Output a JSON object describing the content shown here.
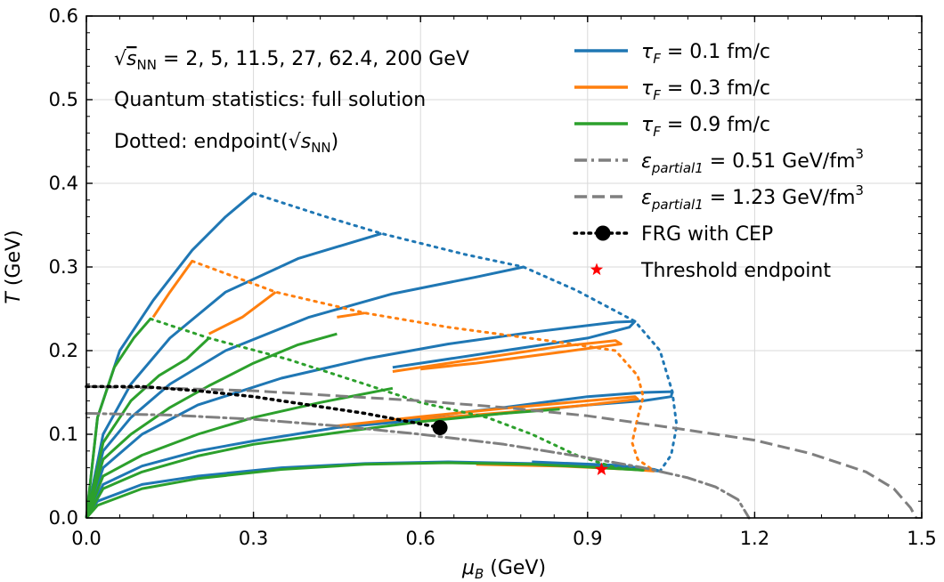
{
  "chart_data": {
    "type": "line",
    "xlabel_main": "μ",
    "xlabel_sub": "B",
    "xlabel_unit": " (GeV)",
    "ylabel_main": "T",
    "ylabel_unit": " (GeV)",
    "xlim": [
      0.0,
      1.5
    ],
    "ylim": [
      0.0,
      0.6
    ],
    "xticks": [
      "0.0",
      "0.3",
      "0.6",
      "0.9",
      "1.2",
      "1.5"
    ],
    "yticks": [
      "0.0",
      "0.1",
      "0.2",
      "0.3",
      "0.4",
      "0.5",
      "0.6"
    ],
    "xtick_values": [
      0.0,
      0.3,
      0.6,
      0.9,
      1.2,
      1.5
    ],
    "ytick_values": [
      0.0,
      0.1,
      0.2,
      0.3,
      0.4,
      0.5,
      0.6
    ],
    "grid": true,
    "legend_position": "top-right",
    "annotations": {
      "line1_prefix": "√",
      "line1_s": "s",
      "line1_sub": "NN",
      "line1_rest": " =  2, 5, 11.5, 27, 62.4, 200 GeV",
      "line2": "Quantum statistics: full solution",
      "line3_prefix": "Dotted: endpoint(√",
      "line3_s": "s",
      "line3_sub": "NN",
      "line3_suffix": ")"
    },
    "legend": [
      {
        "key": "tau01",
        "sym": "τ",
        "sub": "F",
        "text": " = 0.1 fm/c",
        "sup": "",
        "color": "#1f77b4",
        "style": "solid"
      },
      {
        "key": "tau03",
        "sym": "τ",
        "sub": "F",
        "text": " = 0.3 fm/c",
        "sup": "",
        "color": "#ff7f0e",
        "style": "solid"
      },
      {
        "key": "tau09",
        "sym": "τ",
        "sub": "F",
        "text": " = 0.9 fm/c",
        "sup": "",
        "color": "#2ca02c",
        "style": "solid"
      },
      {
        "key": "eps051",
        "sym": "ε",
        "sub": "partial1",
        "text": " = 0.51 GeV/fm",
        "sup": "3",
        "color": "#7f7f7f",
        "style": "dashdot"
      },
      {
        "key": "eps123",
        "sym": "ε",
        "sub": "partial1",
        "text": " = 1.23 GeV/fm",
        "sup": "3",
        "color": "#7f7f7f",
        "style": "dashed"
      },
      {
        "key": "frg",
        "sym": "",
        "sub": "",
        "text": "FRG with CEP",
        "sup": "",
        "color": "#000000",
        "style": "dotted-marker"
      },
      {
        "key": "thr",
        "sym": "",
        "sub": "",
        "text": "Threshold endpoint",
        "sup": "",
        "color": "#ff0000",
        "style": "star"
      }
    ],
    "series": [
      {
        "name": "τF = 0.1 fm/c",
        "color": "#1f77b4",
        "style": "solid",
        "width": 3,
        "paths": [
          [
            [
              0.0,
              0.0
            ],
            [
              0.02,
              0.12
            ],
            [
              0.06,
              0.2
            ],
            [
              0.12,
              0.26
            ],
            [
              0.19,
              0.32
            ],
            [
              0.25,
              0.36
            ],
            [
              0.3,
              0.388
            ]
          ],
          [
            [
              0.0,
              0.0
            ],
            [
              0.03,
              0.1
            ],
            [
              0.08,
              0.16
            ],
            [
              0.15,
              0.215
            ],
            [
              0.25,
              0.27
            ],
            [
              0.38,
              0.31
            ],
            [
              0.53,
              0.34
            ]
          ],
          [
            [
              0.0,
              0.0
            ],
            [
              0.03,
              0.08
            ],
            [
              0.08,
              0.12
            ],
            [
              0.15,
              0.16
            ],
            [
              0.25,
              0.2
            ],
            [
              0.4,
              0.24
            ],
            [
              0.55,
              0.268
            ],
            [
              0.7,
              0.288
            ],
            [
              0.785,
              0.3
            ]
          ],
          [
            [
              0.0,
              0.0
            ],
            [
              0.03,
              0.06
            ],
            [
              0.1,
              0.1
            ],
            [
              0.2,
              0.135
            ],
            [
              0.35,
              0.167
            ],
            [
              0.5,
              0.19
            ],
            [
              0.65,
              0.208
            ],
            [
              0.8,
              0.222
            ],
            [
              0.95,
              0.234
            ],
            [
              0.985,
              0.235
            ],
            [
              0.975,
              0.228
            ],
            [
              0.9,
              0.215
            ],
            [
              0.75,
              0.2
            ],
            [
              0.6,
              0.185
            ],
            [
              0.55,
              0.18
            ]
          ],
          [
            [
              0.0,
              0.0
            ],
            [
              0.03,
              0.04
            ],
            [
              0.1,
              0.062
            ],
            [
              0.2,
              0.08
            ],
            [
              0.3,
              0.092
            ],
            [
              0.45,
              0.108
            ],
            [
              0.6,
              0.12
            ],
            [
              0.75,
              0.132
            ],
            [
              0.9,
              0.145
            ],
            [
              1.0,
              0.15
            ],
            [
              1.052,
              0.151
            ],
            [
              1.05,
              0.145
            ],
            [
              1.0,
              0.14
            ],
            [
              0.9,
              0.135
            ],
            [
              0.75,
              0.125
            ],
            [
              0.6,
              0.117
            ],
            [
              0.45,
              0.108
            ]
          ],
          [
            [
              0.0,
              0.0
            ],
            [
              0.02,
              0.02
            ],
            [
              0.1,
              0.04
            ],
            [
              0.2,
              0.05
            ],
            [
              0.35,
              0.06
            ],
            [
              0.5,
              0.065
            ],
            [
              0.65,
              0.067
            ],
            [
              0.8,
              0.065
            ],
            [
              0.95,
              0.06
            ],
            [
              1.03,
              0.056
            ],
            [
              1.02,
              0.058
            ],
            [
              0.95,
              0.063
            ],
            [
              0.8,
              0.067
            ]
          ]
        ]
      },
      {
        "name": "τF = 0.3 fm/c",
        "color": "#ff7f0e",
        "style": "solid",
        "width": 3,
        "paths": [
          [
            [
              0.12,
              0.24
            ],
            [
              0.15,
              0.27
            ],
            [
              0.19,
              0.307
            ]
          ],
          [
            [
              0.22,
              0.22
            ],
            [
              0.28,
              0.24
            ],
            [
              0.34,
              0.27
            ]
          ],
          [
            [
              0.45,
              0.24
            ],
            [
              0.5,
              0.245
            ]
          ],
          [
            [
              0.55,
              0.175
            ],
            [
              0.7,
              0.19
            ],
            [
              0.85,
              0.205
            ],
            [
              0.95,
              0.212
            ],
            [
              0.96,
              0.208
            ],
            [
              0.85,
              0.198
            ],
            [
              0.7,
              0.185
            ],
            [
              0.6,
              0.178
            ]
          ],
          [
            [
              0.45,
              0.11
            ],
            [
              0.6,
              0.121
            ],
            [
              0.75,
              0.131
            ],
            [
              0.9,
              0.14
            ],
            [
              0.985,
              0.145
            ],
            [
              0.99,
              0.142
            ],
            [
              0.9,
              0.135
            ],
            [
              0.75,
              0.126
            ],
            [
              0.6,
              0.118
            ]
          ],
          [
            [
              0.7,
              0.064
            ],
            [
              0.85,
              0.062
            ],
            [
              0.98,
              0.058
            ],
            [
              1.02,
              0.056
            ]
          ]
        ]
      },
      {
        "name": "τF = 0.9 fm/c",
        "color": "#2ca02c",
        "style": "solid",
        "width": 3,
        "paths": [
          [
            [
              0.0,
              0.0
            ],
            [
              0.02,
              0.12
            ],
            [
              0.05,
              0.18
            ],
            [
              0.085,
              0.215
            ],
            [
              0.115,
              0.238
            ]
          ],
          [
            [
              0.0,
              0.0
            ],
            [
              0.03,
              0.09
            ],
            [
              0.08,
              0.14
            ],
            [
              0.13,
              0.17
            ],
            [
              0.18,
              0.19
            ],
            [
              0.22,
              0.215
            ]
          ],
          [
            [
              0.0,
              0.0
            ],
            [
              0.03,
              0.07
            ],
            [
              0.08,
              0.1
            ],
            [
              0.15,
              0.132
            ],
            [
              0.22,
              0.158
            ],
            [
              0.3,
              0.185
            ],
            [
              0.38,
              0.207
            ],
            [
              0.45,
              0.22
            ]
          ],
          [
            [
              0.0,
              0.0
            ],
            [
              0.03,
              0.05
            ],
            [
              0.1,
              0.075
            ],
            [
              0.2,
              0.1
            ],
            [
              0.3,
              0.12
            ],
            [
              0.42,
              0.138
            ],
            [
              0.55,
              0.155
            ]
          ],
          [
            [
              0.0,
              0.0
            ],
            [
              0.03,
              0.035
            ],
            [
              0.1,
              0.055
            ],
            [
              0.2,
              0.074
            ],
            [
              0.3,
              0.088
            ],
            [
              0.45,
              0.102
            ],
            [
              0.6,
              0.115
            ],
            [
              0.75,
              0.125
            ],
            [
              0.85,
              0.13
            ]
          ],
          [
            [
              0.0,
              0.0
            ],
            [
              0.02,
              0.015
            ],
            [
              0.1,
              0.035
            ],
            [
              0.2,
              0.047
            ],
            [
              0.35,
              0.058
            ],
            [
              0.5,
              0.064
            ],
            [
              0.65,
              0.066
            ],
            [
              0.8,
              0.064
            ],
            [
              0.9,
              0.061
            ],
            [
              1.0,
              0.057
            ]
          ]
        ]
      },
      {
        "name": "Dotted endpoints τF = 0.1",
        "color": "#1f77b4",
        "style": "dotted",
        "width": 3,
        "paths": [
          [
            [
              0.3,
              0.388
            ],
            [
              0.43,
              0.36
            ],
            [
              0.53,
              0.34
            ],
            [
              0.68,
              0.315
            ],
            [
              0.785,
              0.3
            ],
            [
              0.88,
              0.272
            ],
            [
              0.985,
              0.235
            ],
            [
              1.03,
              0.2
            ],
            [
              1.052,
              0.151
            ],
            [
              1.06,
              0.11
            ],
            [
              1.05,
              0.075
            ],
            [
              1.03,
              0.056
            ]
          ]
        ]
      },
      {
        "name": "Dotted endpoints τF = 0.3",
        "color": "#ff7f0e",
        "style": "dotted",
        "width": 3,
        "paths": [
          [
            [
              0.19,
              0.307
            ],
            [
              0.34,
              0.27
            ],
            [
              0.5,
              0.245
            ],
            [
              0.65,
              0.228
            ],
            [
              0.85,
              0.21
            ],
            [
              0.95,
              0.2
            ],
            [
              0.99,
              0.17
            ],
            [
              1.0,
              0.145
            ],
            [
              0.99,
              0.12
            ],
            [
              0.98,
              0.09
            ],
            [
              0.99,
              0.07
            ],
            [
              1.02,
              0.056
            ]
          ]
        ]
      },
      {
        "name": "Dotted endpoints τF = 0.9",
        "color": "#2ca02c",
        "style": "dotted",
        "width": 3,
        "paths": [
          [
            [
              0.115,
              0.238
            ],
            [
              0.22,
              0.215
            ],
            [
              0.36,
              0.19
            ],
            [
              0.5,
              0.16
            ],
            [
              0.6,
              0.138
            ],
            [
              0.72,
              0.12
            ],
            [
              0.8,
              0.1
            ],
            [
              0.88,
              0.075
            ],
            [
              0.95,
              0.06
            ],
            [
              1.0,
              0.057
            ]
          ]
        ]
      },
      {
        "name": "ε_partial1 = 0.51 GeV/fm3",
        "color": "#7f7f7f",
        "style": "dashdot",
        "width": 3,
        "paths": [
          [
            [
              0.0,
              0.125
            ],
            [
              0.15,
              0.123
            ],
            [
              0.3,
              0.118
            ],
            [
              0.45,
              0.11
            ],
            [
              0.6,
              0.1
            ],
            [
              0.75,
              0.088
            ],
            [
              0.9,
              0.072
            ],
            [
              1.0,
              0.06
            ],
            [
              1.08,
              0.048
            ],
            [
              1.13,
              0.037
            ],
            [
              1.17,
              0.022
            ],
            [
              1.19,
              0.0
            ]
          ]
        ]
      },
      {
        "name": "ε_partial1 = 1.23 GeV/fm3",
        "color": "#7f7f7f",
        "style": "dashed",
        "width": 3,
        "paths": [
          [
            [
              0.0,
              0.157
            ],
            [
              0.15,
              0.155
            ],
            [
              0.3,
              0.152
            ],
            [
              0.45,
              0.146
            ],
            [
              0.6,
              0.14
            ],
            [
              0.75,
              0.132
            ],
            [
              0.9,
              0.122
            ],
            [
              1.05,
              0.108
            ],
            [
              1.2,
              0.093
            ],
            [
              1.3,
              0.077
            ],
            [
              1.4,
              0.055
            ],
            [
              1.45,
              0.035
            ],
            [
              1.48,
              0.012
            ],
            [
              1.49,
              0.0
            ]
          ]
        ]
      },
      {
        "name": "FRG with CEP",
        "color": "#000000",
        "style": "dotted-black",
        "width": 3.5,
        "paths": [
          [
            [
              0.0,
              0.157
            ],
            [
              0.1,
              0.157
            ],
            [
              0.2,
              0.152
            ],
            [
              0.3,
              0.145
            ],
            [
              0.4,
              0.135
            ],
            [
              0.5,
              0.125
            ],
            [
              0.58,
              0.115
            ],
            [
              0.635,
              0.108
            ]
          ]
        ]
      }
    ],
    "markers": [
      {
        "name": "CEP",
        "x": 0.635,
        "y": 0.108,
        "shape": "circle",
        "color": "#000000"
      },
      {
        "name": "Threshold endpoint",
        "x": 0.925,
        "y": 0.058,
        "shape": "star",
        "color": "#ff0000"
      }
    ]
  }
}
